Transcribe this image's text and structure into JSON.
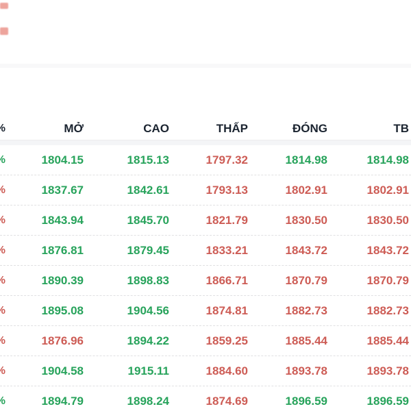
{
  "table": {
    "columns": [
      {
        "key": "pct",
        "label": "%"
      },
      {
        "key": "open",
        "label": "MỞ"
      },
      {
        "key": "high",
        "label": "CAO"
      },
      {
        "key": "low",
        "label": "THẤP"
      },
      {
        "key": "close",
        "label": "ĐÓNG"
      },
      {
        "key": "avg",
        "label": "TB"
      }
    ],
    "rows": [
      {
        "pct": "%",
        "pct_dir": "up",
        "open": "1804.15",
        "open_dir": "up",
        "high": "1815.13",
        "high_dir": "up",
        "low": "1797.32",
        "low_dir": "down",
        "close": "1814.98",
        "close_dir": "up",
        "avg": "1814.98",
        "avg_dir": "up"
      },
      {
        "pct": "%",
        "pct_dir": "down",
        "open": "1837.67",
        "open_dir": "up",
        "high": "1842.61",
        "high_dir": "up",
        "low": "1793.13",
        "low_dir": "down",
        "close": "1802.91",
        "close_dir": "down",
        "avg": "1802.91",
        "avg_dir": "down"
      },
      {
        "pct": "%",
        "pct_dir": "down",
        "open": "1843.94",
        "open_dir": "up",
        "high": "1845.70",
        "high_dir": "up",
        "low": "1821.79",
        "low_dir": "down",
        "close": "1830.50",
        "close_dir": "down",
        "avg": "1830.50",
        "avg_dir": "down"
      },
      {
        "pct": "%",
        "pct_dir": "down",
        "open": "1876.81",
        "open_dir": "up",
        "high": "1879.45",
        "high_dir": "up",
        "low": "1833.21",
        "low_dir": "down",
        "close": "1843.72",
        "close_dir": "down",
        "avg": "1843.72",
        "avg_dir": "down"
      },
      {
        "pct": "%",
        "pct_dir": "down",
        "open": "1890.39",
        "open_dir": "up",
        "high": "1898.83",
        "high_dir": "up",
        "low": "1866.71",
        "low_dir": "down",
        "close": "1870.79",
        "close_dir": "down",
        "avg": "1870.79",
        "avg_dir": "down"
      },
      {
        "pct": "%",
        "pct_dir": "down",
        "open": "1895.08",
        "open_dir": "up",
        "high": "1904.56",
        "high_dir": "up",
        "low": "1874.81",
        "low_dir": "down",
        "close": "1882.73",
        "close_dir": "down",
        "avg": "1882.73",
        "avg_dir": "down"
      },
      {
        "pct": "%",
        "pct_dir": "down",
        "open": "1876.96",
        "open_dir": "down",
        "high": "1894.22",
        "high_dir": "up",
        "low": "1859.25",
        "low_dir": "down",
        "close": "1885.44",
        "close_dir": "down",
        "avg": "1885.44",
        "avg_dir": "down"
      },
      {
        "pct": "%",
        "pct_dir": "down",
        "open": "1904.58",
        "open_dir": "up",
        "high": "1915.11",
        "high_dir": "up",
        "low": "1884.60",
        "low_dir": "down",
        "close": "1893.78",
        "close_dir": "down",
        "avg": "1893.78",
        "avg_dir": "down"
      },
      {
        "pct": "%",
        "pct_dir": "up",
        "open": "1894.79",
        "open_dir": "up",
        "high": "1898.24",
        "high_dir": "up",
        "low": "1874.69",
        "low_dir": "down",
        "close": "1896.59",
        "close_dir": "up",
        "avg": "1896.59",
        "avg_dir": "up"
      }
    ]
  },
  "colors": {
    "up": "#27a35b",
    "down": "#cd5c55",
    "header_text": "#1b2430",
    "row_divider": "#e0e0e2",
    "clipped_top_left_marks": "#e05a4d"
  }
}
